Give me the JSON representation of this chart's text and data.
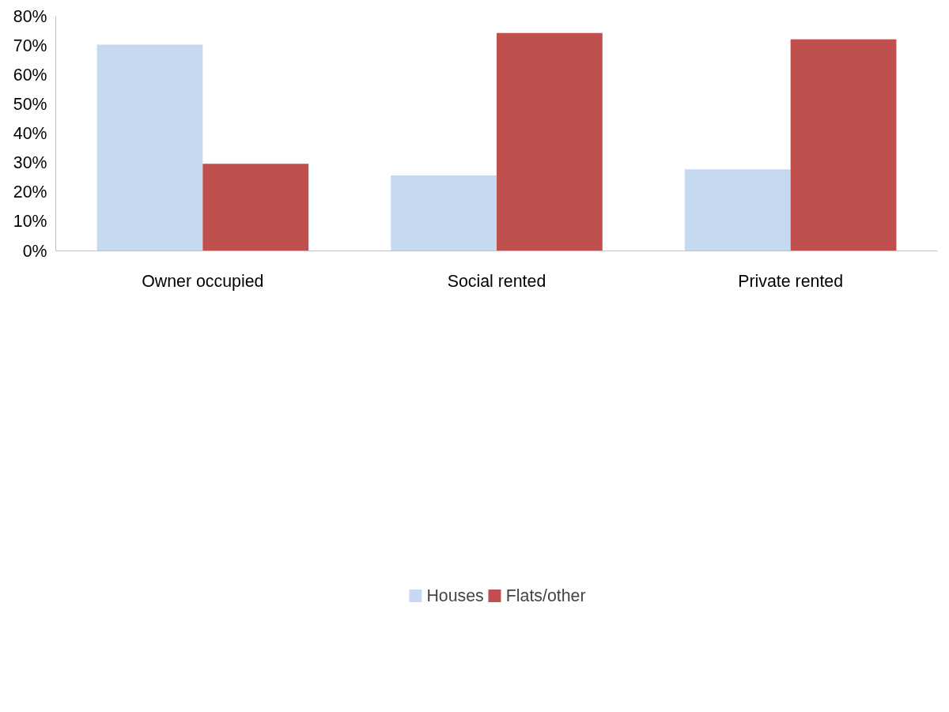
{
  "chart_data": {
    "type": "bar",
    "categories": [
      "Owner occupied",
      "Social rented",
      "Private rented"
    ],
    "series": [
      {
        "name": "Houses",
        "color": "#c6d9f1",
        "values": [
          70.3,
          25.7,
          27.8
        ]
      },
      {
        "name": "Flats/other",
        "color": "#c0504d",
        "values": [
          29.7,
          74.3,
          72.1
        ]
      }
    ],
    "ylim": [
      0,
      80
    ],
    "yticks": [
      {
        "value": 0,
        "label": "0%"
      },
      {
        "value": 10,
        "label": "10%"
      },
      {
        "value": 20,
        "label": "20%"
      },
      {
        "value": 30,
        "label": "30%"
      },
      {
        "value": 40,
        "label": "40%"
      },
      {
        "value": 50,
        "label": "50%"
      },
      {
        "value": 60,
        "label": "60%"
      },
      {
        "value": 70,
        "label": "70%"
      },
      {
        "value": 80,
        "label": "80%"
      }
    ],
    "grid": false,
    "legend": "bottom"
  }
}
